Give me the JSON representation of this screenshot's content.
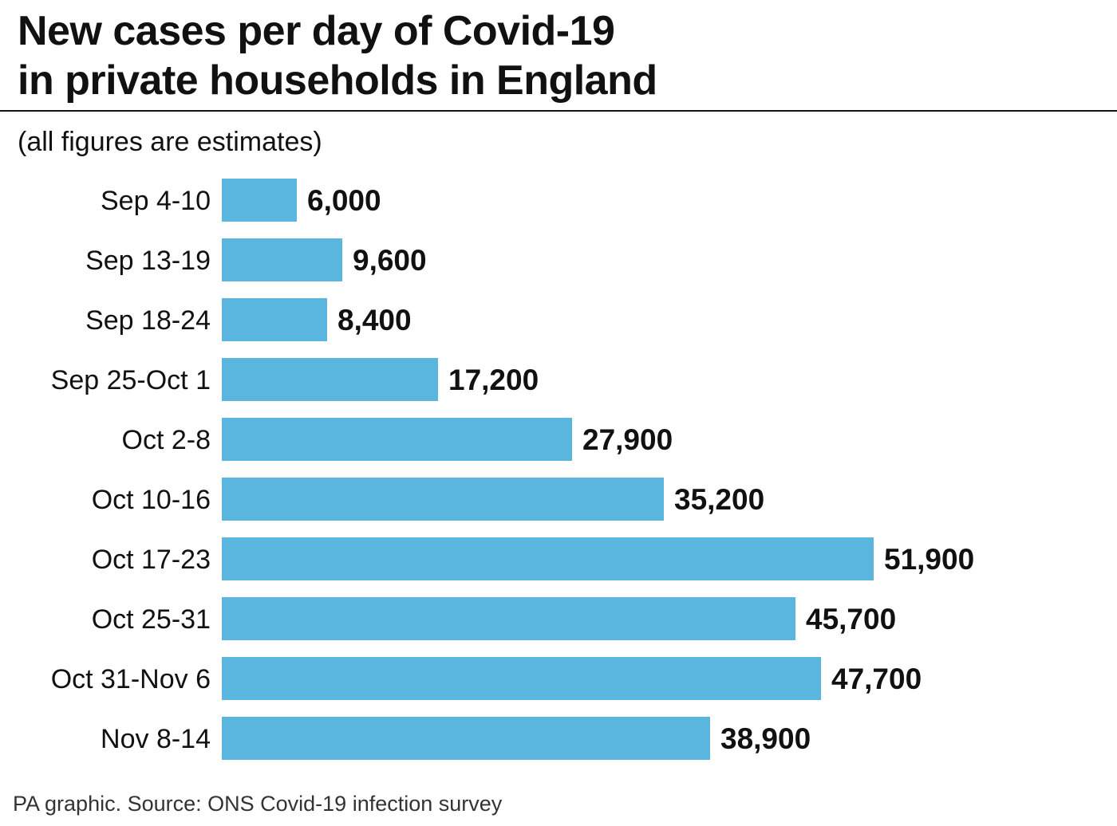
{
  "title_line1": "New cases per day of Covid-19",
  "title_line2": "in private households in England",
  "subtitle": "(all figures are estimates)",
  "footer": "PA graphic. Source: ONS Covid-19 infection survey",
  "colors": {
    "bar": "#5ab6df",
    "text": "#111111",
    "rule": "#111111"
  },
  "chart_data": {
    "type": "bar",
    "orientation": "horizontal",
    "title": "New cases per day of Covid-19 in private households in England",
    "subtitle": "(all figures are estimates)",
    "categories": [
      "Sep 4-10",
      "Sep 13-19",
      "Sep 18-24",
      "Sep 25-Oct 1",
      "Oct 2-8",
      "Oct 10-16",
      "Oct 17-23",
      "Oct 25-31",
      "Oct 31-Nov 6",
      "Nov 8-14"
    ],
    "values": [
      6000,
      9600,
      8400,
      17200,
      27900,
      35200,
      51900,
      45700,
      47700,
      38900
    ],
    "value_labels": [
      "6,000",
      "9,600",
      "8,400",
      "17,200",
      "27,900",
      "35,200",
      "51,900",
      "45,700",
      "47,700",
      "38,900"
    ],
    "xlabel": "",
    "ylabel": "",
    "grid": false,
    "legend": "none",
    "data_labels": true
  }
}
